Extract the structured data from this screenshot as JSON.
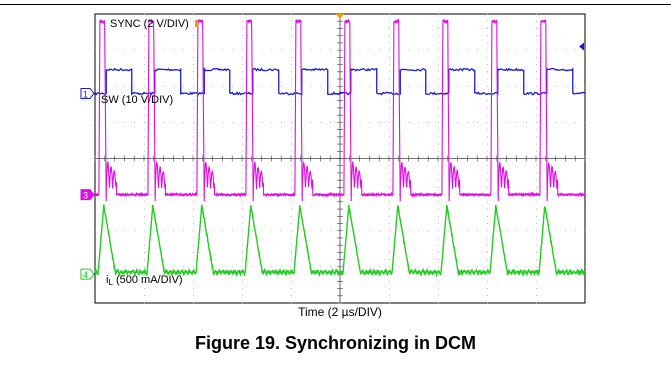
{
  "caption": "Figure 19. Synchronizing in DCM",
  "chart_data": {
    "type": "line",
    "title": "Figure 19. Synchronizing in DCM",
    "xlabel": "Time (2 µs/DIV)",
    "ylabel": "",
    "divisions": {
      "x": 10,
      "y": 8
    },
    "grid": true,
    "background": "#ffffff",
    "series": [
      {
        "name": "SYNC (2 V/DIV)",
        "channel": "1",
        "color": "#1a1adc",
        "label_text": "SYNC (2 V/DIV)",
        "waveform": "square",
        "x": [
          0.0,
          0.23,
          0.23,
          0.75,
          0.75,
          1.22,
          1.22,
          1.75,
          1.75,
          2.23,
          2.23,
          2.75,
          2.75,
          3.22,
          3.22,
          3.75,
          3.75,
          4.22,
          4.22,
          4.75,
          4.75,
          5.22,
          5.22,
          5.75,
          5.75,
          6.23,
          6.23,
          6.75,
          6.75,
          7.22,
          7.22,
          7.75,
          7.75,
          8.22,
          8.22,
          8.75,
          8.75,
          9.22,
          9.22,
          9.75,
          9.75,
          10.0
        ],
        "y": [
          0,
          0,
          2.2,
          2.2,
          0,
          0,
          2.2,
          2.2,
          0,
          0,
          2.2,
          2.2,
          0,
          0,
          2.2,
          2.2,
          0,
          0,
          2.2,
          2.2,
          0,
          0,
          2.2,
          2.2,
          0,
          0,
          2.2,
          2.2,
          0,
          0,
          2.2,
          2.2,
          0,
          0,
          2.2,
          2.2,
          0,
          0,
          2.2,
          2.2,
          0,
          0
        ],
        "ground_reference_div": 5.8,
        "volts_per_div": 2
      },
      {
        "name": "SW (10 V/DIV)",
        "channel": "3",
        "color": "#dc10dc",
        "label_text": "SW (10 V/DIV)",
        "waveform": "switch-node",
        "ground_reference_div": 3.0,
        "volts_per_div": 10
      },
      {
        "name": "iL (500 mA/DIV)",
        "channel": "4",
        "color": "#22cc22",
        "label_main": "i",
        "label_sub": "L",
        "label_rest": " (500 mA/DIV)",
        "waveform": "triangle",
        "ground_reference_div": 0.8,
        "amps_per_div": 0.5
      }
    ]
  }
}
